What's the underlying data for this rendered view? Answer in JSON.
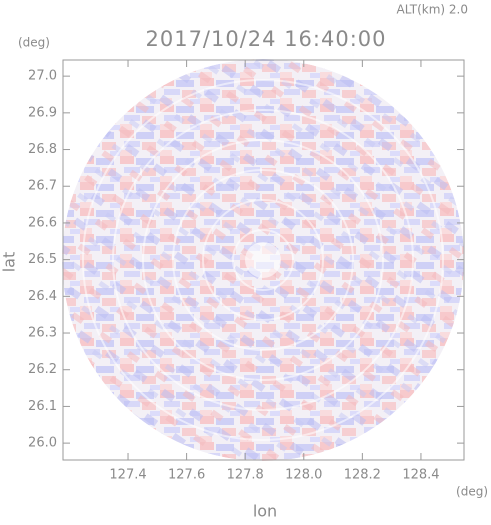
{
  "chart_data": {
    "type": "radar-ppi",
    "title": "2017/10/24 16:40:00",
    "subtitle": "ALT(km)  2.0",
    "x_label": "lon",
    "y_label": "lat",
    "x_unit": "(deg)",
    "y_unit": "(deg)",
    "xlim": [
      127.178,
      128.547
    ],
    "ylim": [
      25.954,
      27.044
    ],
    "xticks": [
      127.4,
      127.6,
      127.8,
      {
        "value": 128,
        "label": "128.0"
      },
      128.2,
      128.4
    ],
    "yticks": [
      {
        "value": 26,
        "label": "26.0"
      },
      26.1,
      26.2,
      26.3,
      26.4,
      26.5,
      26.6,
      26.7,
      26.8,
      26.9,
      {
        "value": 27,
        "label": "27.0"
      }
    ]
  }
}
